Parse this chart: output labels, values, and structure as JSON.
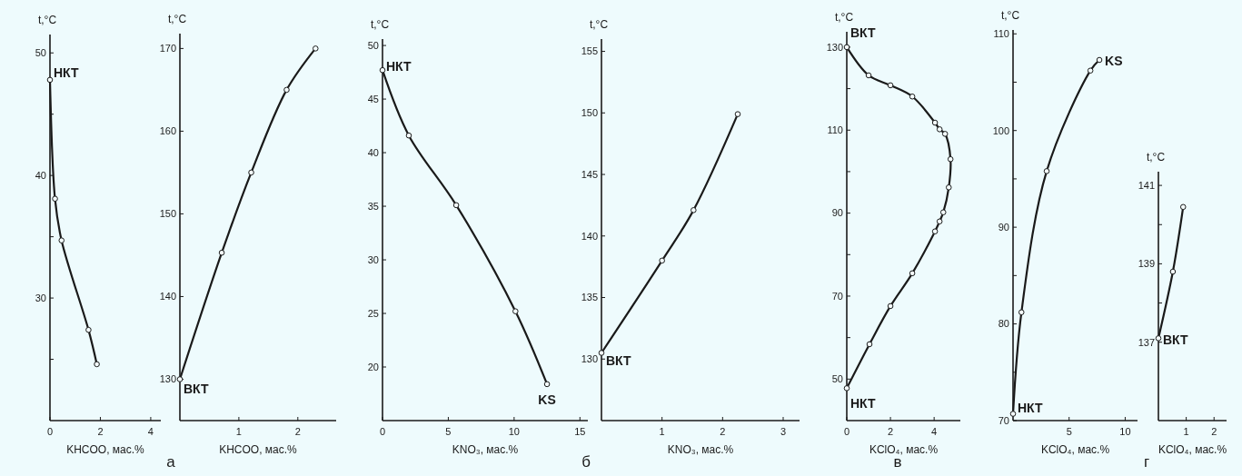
{
  "chart_data": [
    {
      "type": "line",
      "ylabel": "t,°C",
      "xlabel": "KHCOO, мас.%",
      "xlim": [
        0,
        4.4
      ],
      "ylim": [
        20,
        51.5
      ],
      "xticks": [
        0,
        2,
        4
      ],
      "yticks": [
        {
          "value": 25,
          "label": null
        },
        30,
        {
          "value": 35,
          "label": null
        },
        40,
        {
          "value": 45,
          "label": null
        },
        50
      ],
      "marker": "circle",
      "line_style": "solid",
      "series": [
        {
          "color": "#1a1a1a",
          "x": [
            0,
            0.2,
            0.46,
            1.53,
            1.86
          ],
          "values": [
            47.8,
            38.1,
            34.7,
            27.4,
            24.6
          ]
        }
      ],
      "annotations": [
        {
          "text": "НКТ",
          "x": 0,
          "y": 47.8
        }
      ]
    },
    {
      "type": "line",
      "ylabel": "t,°C",
      "xlabel": "KHCOO, мас.%",
      "xlim": [
        0,
        2.65
      ],
      "ylim": [
        125,
        171.8
      ],
      "xticks": [
        1,
        2
      ],
      "yticks": [
        130,
        140,
        150,
        160,
        170
      ],
      "marker": "circle",
      "line_style": "solid",
      "series": [
        {
          "color": "#1a1a1a",
          "x": [
            0,
            0.71,
            1.21,
            1.81,
            2.3
          ],
          "values": [
            130,
            145.3,
            155,
            165,
            170
          ]
        }
      ],
      "annotations": [
        {
          "text": "ВКТ",
          "x": 0,
          "y": 130
        },
        "а"
      ]
    },
    {
      "type": "line",
      "ylabel": "t,°C",
      "xlabel": "KNO₃, мас.%",
      "xlim": [
        0,
        15.6
      ],
      "ylim": [
        15,
        50.6
      ],
      "xticks": [
        0,
        5,
        10,
        15
      ],
      "yticks": [
        20,
        25,
        30,
        35,
        40,
        45,
        50
      ],
      "marker": "circle",
      "line_style": "solid",
      "series": [
        {
          "color": "#1a1a1a",
          "x": [
            0,
            2,
            5.6,
            10.1,
            12.5
          ],
          "values": [
            47.7,
            41.6,
            35.1,
            25.2,
            18.4
          ]
        }
      ],
      "annotations": [
        {
          "text": "НКТ",
          "x": 0,
          "y": 47.7
        },
        {
          "text": "KS",
          "x": 12.5,
          "y": 18.4
        }
      ]
    },
    {
      "type": "line",
      "ylabel": "t,°C",
      "xlabel": "KNO₃, мас.%",
      "xlim": [
        0,
        3.27
      ],
      "ylim": [
        125,
        156
      ],
      "xticks": [
        1,
        2,
        3
      ],
      "yticks": [
        130,
        135,
        140,
        145,
        150,
        155
      ],
      "marker": "circle",
      "line_style": "solid",
      "series": [
        {
          "color": "#1a1a1a",
          "x": [
            0,
            1,
            1.52,
            2.25
          ],
          "values": [
            130.5,
            138,
            142.1,
            149.9
          ]
        }
      ],
      "annotations": [
        {
          "text": "ВКТ",
          "x": 0,
          "y": 130.5
        },
        "б"
      ]
    },
    {
      "type": "line",
      "ylabel": "t,°C",
      "xlabel": "KClO₄, мас.%",
      "xlim": [
        0,
        5.2
      ],
      "ylim": [
        40,
        133.7
      ],
      "xticks": [
        0,
        2,
        4
      ],
      "yticks": [
        50,
        {
          "value": 60,
          "label": null
        },
        70,
        {
          "value": 80,
          "label": null
        },
        90,
        {
          "value": 100,
          "label": null
        },
        110,
        {
          "value": 120,
          "label": null
        },
        130
      ],
      "marker": "circle",
      "line_style": "solid",
      "series": [
        {
          "color": "#1a1a1a",
          "x": [
            0,
            1,
            2,
            3,
            4.04,
            4.25,
            4.5,
            4.75,
            4.67,
            4.42,
            4.25,
            4.04,
            3,
            2,
            1.04,
            0
          ],
          "values": [
            130,
            123.2,
            120.8,
            118.1,
            111.8,
            110.2,
            109.1,
            103,
            96.2,
            90.2,
            88,
            85.6,
            75.5,
            67.6,
            58.4,
            47.8
          ]
        }
      ],
      "annotations": [
        {
          "text": "ВКТ",
          "x": 0,
          "y": 130
        },
        {
          "text": "НКТ",
          "x": 0,
          "y": 47.8
        },
        "в"
      ]
    },
    {
      "type": "line",
      "ylabel": "t,°C",
      "xlabel": "KClO₄, мас.%",
      "xlim": [
        0,
        11.1
      ],
      "ylim": [
        70,
        110.4
      ],
      "xticks": [
        5,
        10
      ],
      "yticks": [
        70,
        {
          "value": 75,
          "label": null
        },
        80,
        {
          "value": 85,
          "label": null
        },
        90,
        {
          "value": 95,
          "label": null
        },
        100,
        {
          "value": 105,
          "label": null
        },
        110
      ],
      "marker": "circle",
      "line_style": "solid",
      "series": [
        {
          "color": "#1a1a1a",
          "x": [
            0,
            0.75,
            3,
            6.9,
            7.7
          ],
          "values": [
            70.7,
            81.2,
            95.8,
            106.2,
            107.3
          ]
        }
      ],
      "annotations": [
        {
          "text": "НКТ",
          "x": 0,
          "y": 70.7
        },
        {
          "text": "KS",
          "x": 7.7,
          "y": 107.3
        }
      ]
    },
    {
      "type": "line",
      "ylabel": "t,°C",
      "xlabel": "KClO₄, мас.%",
      "xlim": [
        0,
        2.45
      ],
      "ylim": [
        135,
        141.35
      ],
      "xticks": [
        1,
        2
      ],
      "yticks": [
        137,
        {
          "value": 138,
          "label": null
        },
        139,
        {
          "value": 140,
          "label": null
        },
        141
      ],
      "marker": "circle",
      "line_style": "solid",
      "series": [
        {
          "color": "#1a1a1a",
          "x": [
            0,
            0.52,
            0.89
          ],
          "values": [
            137.1,
            138.8,
            140.45
          ]
        }
      ],
      "annotations": [
        {
          "text": "ВКТ",
          "x": 0,
          "y": 137.1
        },
        "г"
      ]
    }
  ]
}
